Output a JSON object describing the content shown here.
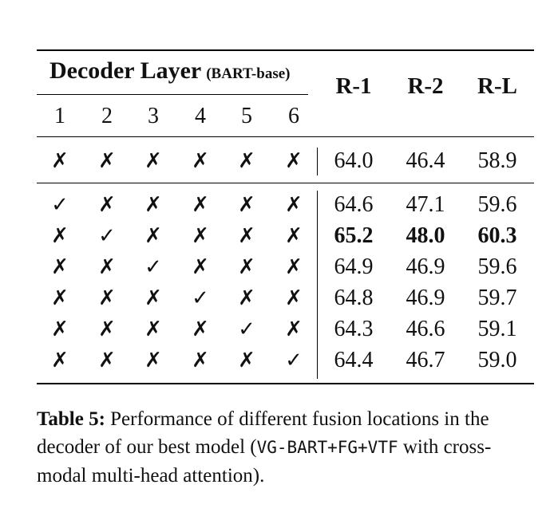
{
  "table": {
    "header": {
      "group_label": "Decoder Layer",
      "group_sublabel": "(BART-base)",
      "layers": [
        "1",
        "2",
        "3",
        "4",
        "5",
        "6"
      ],
      "metrics": [
        "R-1",
        "R-2",
        "R-L"
      ]
    },
    "rows": [
      {
        "marks": [
          "✗",
          "✗",
          "✗",
          "✗",
          "✗",
          "✗"
        ],
        "scores": [
          "64.0",
          "46.4",
          "58.9"
        ],
        "bold": false
      },
      {
        "marks": [
          "✓",
          "✗",
          "✗",
          "✗",
          "✗",
          "✗"
        ],
        "scores": [
          "64.6",
          "47.1",
          "59.6"
        ],
        "bold": false
      },
      {
        "marks": [
          "✗",
          "✓",
          "✗",
          "✗",
          "✗",
          "✗"
        ],
        "scores": [
          "65.2",
          "48.0",
          "60.3"
        ],
        "bold": true
      },
      {
        "marks": [
          "✗",
          "✗",
          "✓",
          "✗",
          "✗",
          "✗"
        ],
        "scores": [
          "64.9",
          "46.9",
          "59.6"
        ],
        "bold": false
      },
      {
        "marks": [
          "✗",
          "✗",
          "✗",
          "✓",
          "✗",
          "✗"
        ],
        "scores": [
          "64.8",
          "46.9",
          "59.7"
        ],
        "bold": false
      },
      {
        "marks": [
          "✗",
          "✗",
          "✗",
          "✗",
          "✓",
          "✗"
        ],
        "scores": [
          "64.3",
          "46.6",
          "59.1"
        ],
        "bold": false
      },
      {
        "marks": [
          "✗",
          "✗",
          "✗",
          "✗",
          "✗",
          "✓"
        ],
        "scores": [
          "64.4",
          "46.7",
          "59.0"
        ],
        "bold": false
      }
    ]
  },
  "caption": {
    "label": "Table 5:",
    "text_before": " Performance of different fusion locations in the decoder of our best model (",
    "model_name": "VG-BART+FG+VTF",
    "text_after": " with cross-modal multi-head attention)."
  }
}
